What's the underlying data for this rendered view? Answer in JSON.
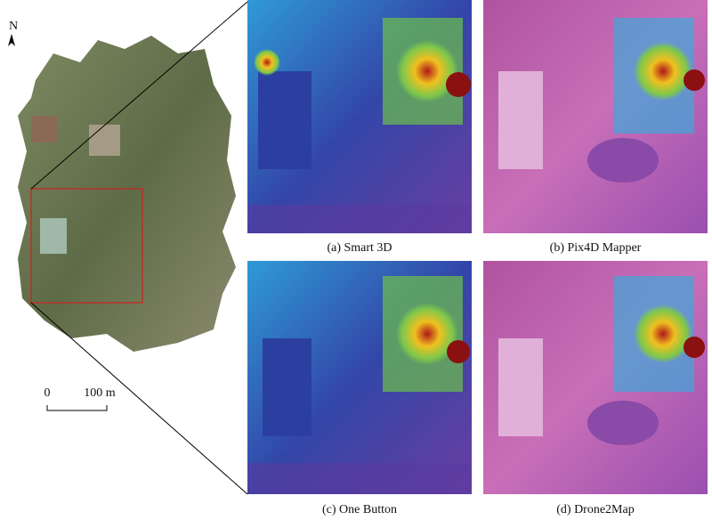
{
  "map": {
    "north": "N",
    "scale": {
      "start": "0",
      "end": "100 m"
    }
  },
  "panels": [
    {
      "caption": "(a) Smart 3D"
    },
    {
      "caption": "(b) Pix4D Mapper"
    },
    {
      "caption": "(c) One Button"
    },
    {
      "caption": "(d) Drone2Map"
    }
  ]
}
